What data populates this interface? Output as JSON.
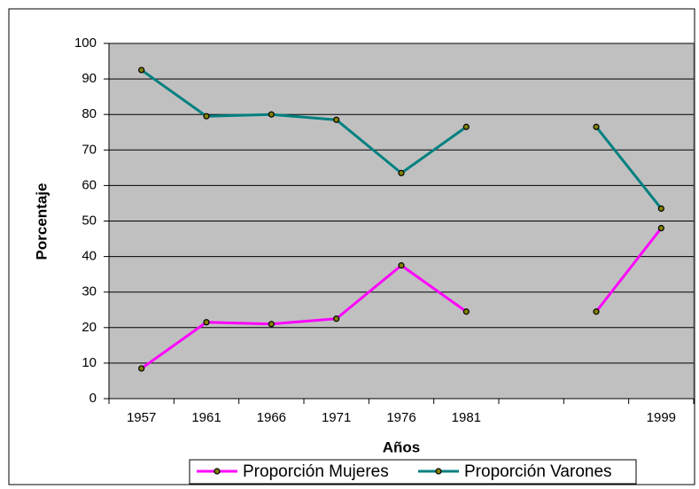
{
  "chart_data": {
    "type": "line",
    "x_label": "Años",
    "y_label": "Porcentaje",
    "categories": [
      "1957",
      "1961",
      "1966",
      "1971",
      "1976",
      "1981",
      null,
      null,
      "1999"
    ],
    "series": [
      {
        "name": "Proporción Mujeres",
        "color": "#ff00ff",
        "values": [
          8.5,
          21.5,
          21,
          22.5,
          37.5,
          24.5,
          null,
          24.5,
          48
        ]
      },
      {
        "name": "Proporción Varones",
        "color": "#008080",
        "values": [
          92.5,
          79.5,
          80,
          78.5,
          63.5,
          76.5,
          null,
          76.5,
          53.5
        ]
      }
    ],
    "ylim": [
      0,
      100
    ],
    "yticks": [
      0,
      10,
      20,
      30,
      40,
      50,
      60,
      70,
      80,
      90,
      100
    ],
    "grid": true,
    "legend": "bottom",
    "background": "#c0c0c0"
  }
}
